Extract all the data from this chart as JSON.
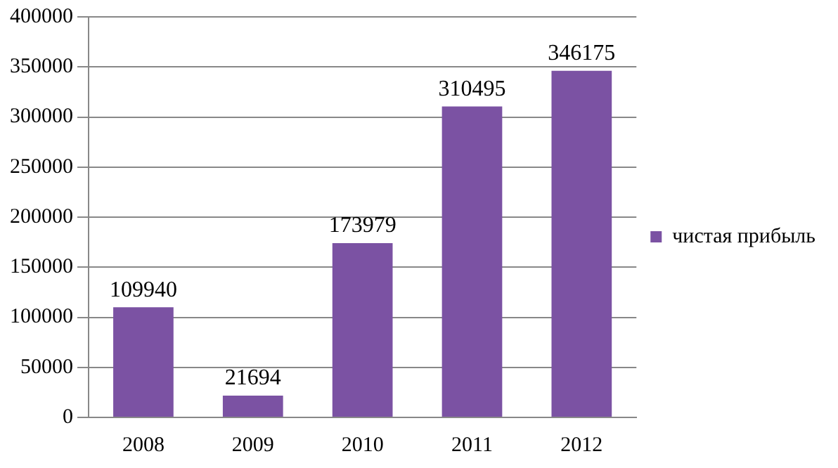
{
  "chart_data": {
    "type": "bar",
    "categories": [
      "2008",
      "2009",
      "2010",
      "2011",
      "2012"
    ],
    "series": [
      {
        "name": "чистая прибыль",
        "color": "#7b52a3",
        "values": [
          109940,
          21694,
          173979,
          310495,
          346175
        ]
      }
    ],
    "ylim": [
      0,
      400000
    ],
    "yticks": [
      0,
      50000,
      100000,
      150000,
      200000,
      250000,
      300000,
      350000,
      400000
    ],
    "grid": "y",
    "legend": "right",
    "data_labels": true
  }
}
